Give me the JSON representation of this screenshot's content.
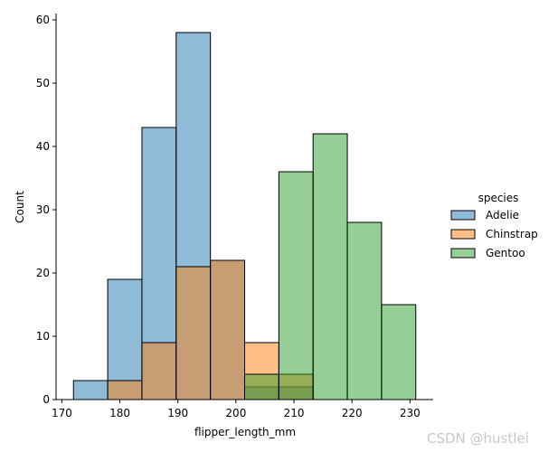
{
  "chart_data": {
    "type": "bar",
    "subtype": "overlapping-histogram",
    "xlabel": "flipper_length_mm",
    "ylabel": "Count",
    "xlim": [
      169,
      234
    ],
    "ylim": [
      0,
      61
    ],
    "xticks": [
      170,
      180,
      190,
      200,
      210,
      220,
      230
    ],
    "yticks": [
      0,
      10,
      20,
      30,
      40,
      50,
      60
    ],
    "bin_edges": [
      172,
      177.9,
      183.8,
      189.7,
      195.6,
      201.5,
      207.4,
      213.3,
      219.2,
      225.1,
      231
    ],
    "series": [
      {
        "name": "Adelie",
        "color": "#1f77b4",
        "values": [
          3,
          19,
          43,
          58,
          22,
          2,
          2,
          0,
          0,
          0
        ]
      },
      {
        "name": "Chinstrap",
        "color": "#ff7f0e",
        "values": [
          0,
          3,
          9,
          21,
          22,
          9,
          4,
          0,
          0,
          0
        ]
      },
      {
        "name": "Gentoo",
        "color": "#2ca02c",
        "values": [
          0,
          0,
          0,
          0,
          0,
          4,
          36,
          42,
          28,
          15
        ]
      }
    ],
    "legend": {
      "title": "species",
      "position": "right-outside"
    },
    "grid": false,
    "bar_alpha": 0.5,
    "edgecolor": "#000000"
  },
  "watermark": "CSDN @hustlei"
}
